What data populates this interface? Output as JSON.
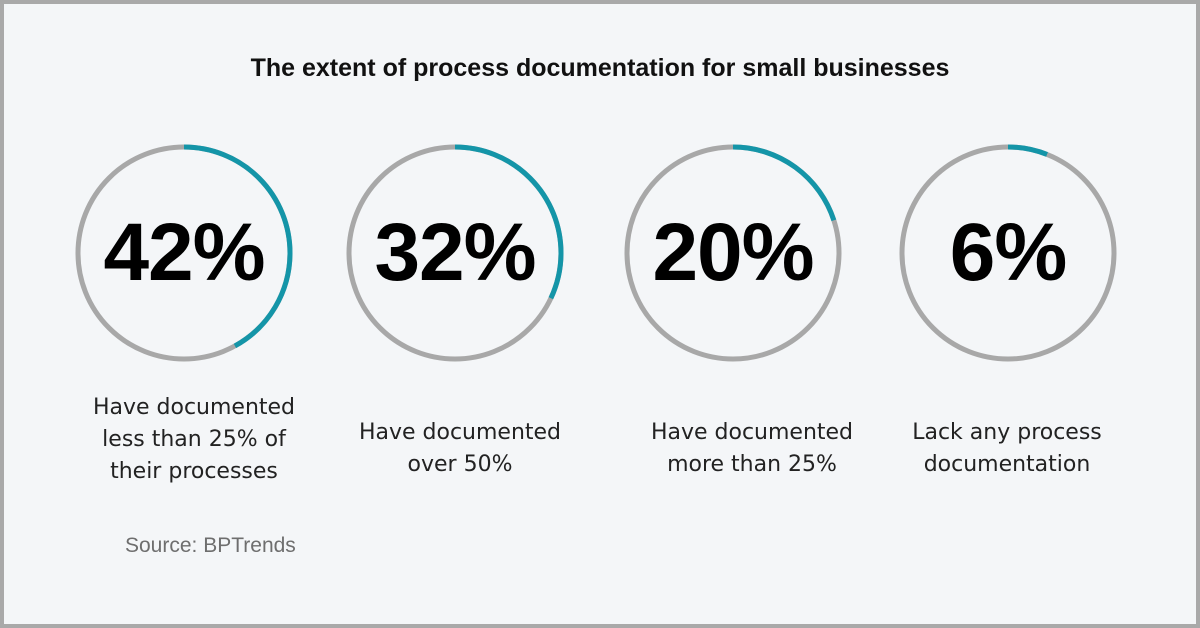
{
  "chart_data": {
    "type": "pie",
    "title": "The extent of process documentation for small businesses",
    "colors": {
      "track": "#a8a8a8",
      "fill": "#1495a8"
    },
    "items": [
      {
        "value": 42,
        "label": "42%",
        "caption": [
          "Have documented",
          "less than 25% of",
          "their processes"
        ]
      },
      {
        "value": 32,
        "label": "32%",
        "caption": [
          "Have documented",
          "over 50%"
        ]
      },
      {
        "value": 20,
        "label": "20%",
        "caption": [
          "Have documented",
          "more than 25%"
        ]
      },
      {
        "value": 6,
        "label": "6%",
        "caption": [
          "Lack any process",
          "documentation"
        ]
      }
    ],
    "source": "Source: BPTrends"
  }
}
